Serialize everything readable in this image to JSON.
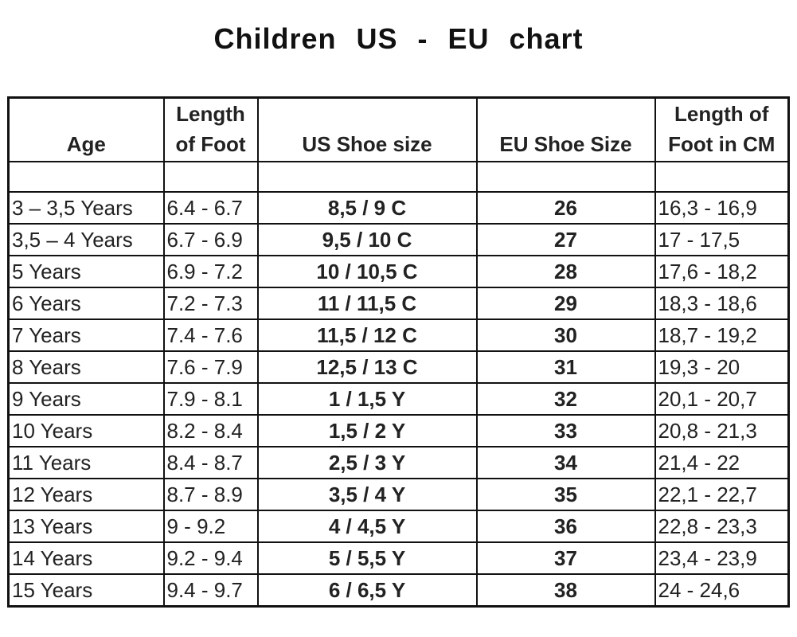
{
  "title": "Children US - EU chart",
  "table": {
    "headers": [
      "Age",
      "Length of Foot",
      "US Shoe size",
      "EU Shoe Size",
      "Length of Foot in CM"
    ],
    "rows": [
      [
        "3 – 3,5 Years",
        "6.4 - 6.7",
        "8,5 / 9 C",
        "26",
        "16,3 - 16,9"
      ],
      [
        "3,5 – 4 Years",
        "6.7 - 6.9",
        "9,5 / 10 C",
        "27",
        "17 - 17,5"
      ],
      [
        "5 Years",
        "6.9 - 7.2",
        "10 / 10,5 C",
        "28",
        "17,6 - 18,2"
      ],
      [
        "6 Years",
        "7.2 - 7.3",
        "11 / 11,5 C",
        "29",
        "18,3 - 18,6"
      ],
      [
        "7 Years",
        "7.4 - 7.6",
        "11,5 / 12 C",
        "30",
        "18,7 - 19,2"
      ],
      [
        "8 Years",
        "7.6 - 7.9",
        "12,5 / 13 C",
        "31",
        "19,3 - 20"
      ],
      [
        "9 Years",
        "7.9 - 8.1",
        "1 / 1,5 Y",
        "32",
        "20,1 - 20,7"
      ],
      [
        "10 Years",
        "8.2 - 8.4",
        "1,5 / 2 Y",
        "33",
        "20,8 - 21,3"
      ],
      [
        "11 Years",
        "8.4 - 8.7",
        "2,5 / 3 Y",
        "34",
        "21,4 - 22"
      ],
      [
        "12 Years",
        "8.7 - 8.9",
        "3,5 / 4 Y",
        "35",
        "22,1 - 22,7"
      ],
      [
        "13 Years",
        "9 - 9.2",
        "4 / 4,5 Y",
        "36",
        "22,8 - 23,3"
      ],
      [
        "14 Years",
        "9.2 - 9.4",
        "5 / 5,5 Y",
        "37",
        "23,4 - 23,9"
      ],
      [
        "15 Years",
        "9.4 - 9.7",
        "6 / 6,5 Y",
        "38",
        "24 - 24,6"
      ]
    ]
  }
}
